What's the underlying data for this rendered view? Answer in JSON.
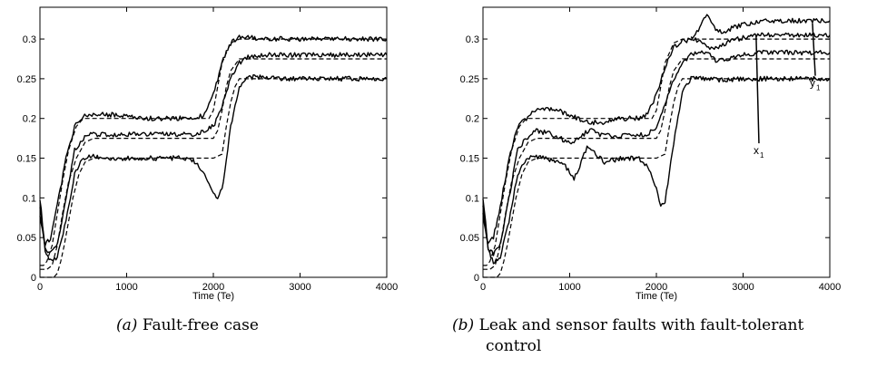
{
  "chart_data": [
    {
      "type": "line",
      "xlabel": "Time (Te)",
      "ylabel": "",
      "xlim": [
        0,
        4000
      ],
      "ylim": [
        0,
        0.34
      ],
      "xticks": [
        "0",
        "1000",
        "2000",
        "3000",
        "4000"
      ],
      "yticks": [
        "0",
        "0.05",
        "0.1",
        "0.15",
        "0.2",
        "0.25",
        "0.3"
      ],
      "grid": false,
      "caption_label": "(a)",
      "caption_text": "Fault-free case",
      "series": [
        {
          "style": "solid",
          "x": [
            0,
            60,
            120,
            200,
            300,
            400,
            500,
            600,
            800,
            1000,
            1200,
            1400,
            1600,
            1800,
            1900,
            2000,
            2050,
            2100,
            2200,
            2300,
            2400,
            2600,
            2800,
            3000,
            3200,
            3400,
            3600,
            3800,
            4000
          ],
          "y": [
            0.1,
            0.035,
            0.02,
            0.025,
            0.07,
            0.13,
            0.15,
            0.152,
            0.15,
            0.15,
            0.15,
            0.15,
            0.15,
            0.145,
            0.13,
            0.105,
            0.1,
            0.11,
            0.19,
            0.24,
            0.252,
            0.252,
            0.25,
            0.25,
            0.25,
            0.25,
            0.25,
            0.25,
            0.25
          ]
        },
        {
          "style": "solid",
          "x": [
            0,
            60,
            120,
            200,
            300,
            400,
            500,
            600,
            800,
            1000,
            1200,
            1400,
            1600,
            1800,
            2000,
            2100,
            2200,
            2300,
            2400,
            2600,
            2800,
            3000,
            3200,
            3400,
            3600,
            3800,
            4000
          ],
          "y": [
            0.09,
            0.035,
            0.03,
            0.04,
            0.1,
            0.16,
            0.175,
            0.18,
            0.18,
            0.18,
            0.18,
            0.18,
            0.18,
            0.18,
            0.19,
            0.215,
            0.25,
            0.27,
            0.278,
            0.28,
            0.28,
            0.28,
            0.28,
            0.28,
            0.28,
            0.28,
            0.28
          ]
        },
        {
          "style": "solid",
          "x": [
            0,
            60,
            120,
            200,
            300,
            400,
            500,
            600,
            800,
            1000,
            1200,
            1400,
            1600,
            1800,
            1900,
            2000,
            2100,
            2200,
            2300,
            2400,
            2600,
            2800,
            3000,
            3200,
            3400,
            3600,
            3800,
            4000
          ],
          "y": [
            0.08,
            0.04,
            0.05,
            0.09,
            0.15,
            0.19,
            0.202,
            0.205,
            0.205,
            0.203,
            0.2,
            0.2,
            0.2,
            0.2,
            0.205,
            0.23,
            0.27,
            0.295,
            0.302,
            0.302,
            0.3,
            0.3,
            0.3,
            0.3,
            0.3,
            0.3,
            0.3,
            0.3
          ]
        },
        {
          "style": "dashed",
          "x": [
            0,
            40,
            80,
            140,
            200,
            260,
            330,
            420,
            500,
            600,
            800,
            1000,
            1500,
            1950,
            2000,
            2050,
            2100,
            2200,
            2300,
            2400,
            4000
          ],
          "y": [
            0.015,
            0.015,
            0.02,
            0.04,
            0.08,
            0.12,
            0.16,
            0.19,
            0.2,
            0.2,
            0.2,
            0.2,
            0.2,
            0.2,
            0.21,
            0.24,
            0.27,
            0.295,
            0.3,
            0.3,
            0.3
          ]
        },
        {
          "style": "dashed",
          "x": [
            0,
            80,
            140,
            200,
            260,
            330,
            420,
            520,
            620,
            800,
            1000,
            1500,
            2000,
            2050,
            2100,
            2150,
            2200,
            2300,
            2400,
            4000
          ],
          "y": [
            0.01,
            0.01,
            0.015,
            0.04,
            0.08,
            0.12,
            0.15,
            0.17,
            0.175,
            0.175,
            0.175,
            0.175,
            0.175,
            0.185,
            0.21,
            0.24,
            0.26,
            0.275,
            0.275,
            0.275
          ]
        },
        {
          "style": "dashed",
          "x": [
            0,
            160,
            200,
            240,
            280,
            330,
            380,
            450,
            520,
            620,
            800,
            1000,
            1500,
            2000,
            2100,
            2150,
            2200,
            2250,
            2300,
            2400,
            4000
          ],
          "y": [
            0.0,
            0.0,
            0.005,
            0.02,
            0.04,
            0.07,
            0.1,
            0.13,
            0.145,
            0.15,
            0.15,
            0.15,
            0.15,
            0.15,
            0.155,
            0.19,
            0.22,
            0.24,
            0.25,
            0.25,
            0.25
          ]
        }
      ]
    },
    {
      "type": "line",
      "xlabel": "Time (Te)",
      "ylabel": "",
      "xlim": [
        0,
        4000
      ],
      "ylim": [
        0,
        0.34
      ],
      "xticks": [
        "0",
        "1000",
        "2000",
        "3000",
        "4000"
      ],
      "yticks": [
        "0",
        "0.05",
        "0.1",
        "0.15",
        "0.2",
        "0.25",
        "0.3"
      ],
      "grid": false,
      "caption_label": "(b)",
      "caption_text": "Leak and sensor faults with fault-tolerant",
      "caption_text_cont": "control",
      "annotations": [
        {
          "label": "x",
          "sub": "1",
          "x": 3120,
          "y": 0.155,
          "tip_x": 3150,
          "tip_y": 0.305
        },
        {
          "label": "y",
          "sub": "1",
          "x": 3770,
          "y": 0.24,
          "tip_x": 3800,
          "tip_y": 0.32
        }
      ],
      "series": [
        {
          "style": "solid",
          "x": [
            0,
            60,
            120,
            200,
            300,
            400,
            500,
            600,
            800,
            950,
            1050,
            1100,
            1200,
            1300,
            1400,
            1600,
            1800,
            1900,
            2000,
            2050,
            2100,
            2200,
            2300,
            2400,
            2600,
            2800,
            3000,
            3200,
            3400,
            3600,
            3800,
            4000
          ],
          "y": [
            0.1,
            0.035,
            0.02,
            0.025,
            0.07,
            0.13,
            0.15,
            0.152,
            0.148,
            0.14,
            0.125,
            0.135,
            0.165,
            0.155,
            0.145,
            0.15,
            0.15,
            0.14,
            0.11,
            0.09,
            0.095,
            0.17,
            0.235,
            0.25,
            0.25,
            0.248,
            0.25,
            0.25,
            0.25,
            0.25,
            0.25,
            0.25
          ]
        },
        {
          "style": "solid",
          "x": [
            0,
            60,
            120,
            200,
            300,
            400,
            500,
            600,
            800,
            950,
            1050,
            1150,
            1250,
            1350,
            1500,
            1700,
            1900,
            2000,
            2100,
            2200,
            2300,
            2400,
            2600,
            2700,
            2800,
            3000,
            3200,
            3400,
            3600,
            3800,
            4000
          ],
          "y": [
            0.09,
            0.035,
            0.03,
            0.04,
            0.1,
            0.16,
            0.175,
            0.185,
            0.18,
            0.172,
            0.17,
            0.18,
            0.185,
            0.18,
            0.177,
            0.18,
            0.18,
            0.19,
            0.22,
            0.25,
            0.268,
            0.282,
            0.282,
            0.272,
            0.275,
            0.28,
            0.283,
            0.283,
            0.283,
            0.283,
            0.283
          ]
        },
        {
          "style": "solid",
          "x": [
            0,
            60,
            120,
            200,
            300,
            400,
            500,
            600,
            800,
            1000,
            1200,
            1400,
            1600,
            1800,
            1900,
            2000,
            2100,
            2200,
            2300,
            2400,
            2500,
            2600,
            2700,
            2800,
            3000,
            3200,
            3400,
            3600,
            3800,
            4000
          ],
          "y": [
            0.08,
            0.04,
            0.05,
            0.09,
            0.15,
            0.19,
            0.2,
            0.21,
            0.212,
            0.205,
            0.195,
            0.195,
            0.2,
            0.2,
            0.205,
            0.23,
            0.265,
            0.29,
            0.297,
            0.3,
            0.298,
            0.29,
            0.29,
            0.295,
            0.302,
            0.305,
            0.305,
            0.305,
            0.305,
            0.305
          ]
        },
        {
          "style": "solid",
          "x": [
            2400,
            2450,
            2500,
            2550,
            2600,
            2650,
            2700,
            2800,
            2900,
            3000,
            3200,
            3400,
            3600,
            3800,
            4000
          ],
          "y": [
            0.3,
            0.305,
            0.315,
            0.325,
            0.33,
            0.32,
            0.31,
            0.31,
            0.315,
            0.318,
            0.322,
            0.323,
            0.323,
            0.323,
            0.323
          ]
        },
        {
          "style": "dashed",
          "x": [
            0,
            40,
            80,
            140,
            200,
            260,
            330,
            420,
            500,
            600,
            800,
            1000,
            1500,
            1950,
            2000,
            2050,
            2100,
            2200,
            2300,
            2400,
            4000
          ],
          "y": [
            0.015,
            0.015,
            0.02,
            0.04,
            0.08,
            0.12,
            0.16,
            0.19,
            0.2,
            0.2,
            0.2,
            0.2,
            0.2,
            0.2,
            0.21,
            0.24,
            0.27,
            0.295,
            0.3,
            0.3,
            0.3
          ]
        },
        {
          "style": "dashed",
          "x": [
            0,
            80,
            140,
            200,
            260,
            330,
            420,
            520,
            620,
            800,
            1000,
            1500,
            2000,
            2050,
            2100,
            2150,
            2200,
            2300,
            2400,
            4000
          ],
          "y": [
            0.01,
            0.01,
            0.015,
            0.04,
            0.08,
            0.12,
            0.15,
            0.17,
            0.175,
            0.175,
            0.175,
            0.175,
            0.175,
            0.185,
            0.21,
            0.24,
            0.26,
            0.275,
            0.275,
            0.275
          ]
        },
        {
          "style": "dashed",
          "x": [
            0,
            160,
            200,
            240,
            280,
            330,
            380,
            450,
            520,
            620,
            800,
            1000,
            1500,
            2000,
            2100,
            2150,
            2200,
            2250,
            2300,
            2400,
            4000
          ],
          "y": [
            0.0,
            0.0,
            0.005,
            0.02,
            0.04,
            0.07,
            0.1,
            0.13,
            0.145,
            0.15,
            0.15,
            0.15,
            0.15,
            0.15,
            0.155,
            0.19,
            0.22,
            0.24,
            0.25,
            0.25,
            0.25
          ]
        }
      ]
    }
  ]
}
